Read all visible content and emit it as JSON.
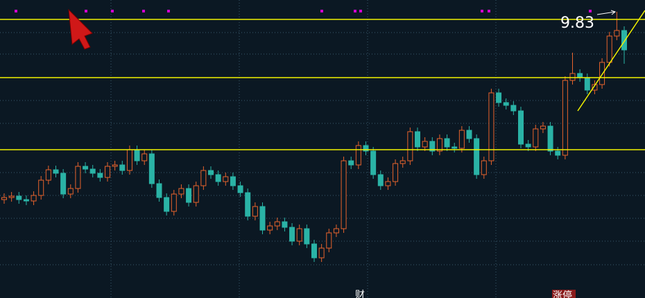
{
  "chart_data": {
    "type": "candlestick",
    "ylim": [
      5.7,
      10.0
    ],
    "up_color": "#e8632c",
    "down_color": "#2ab3a6",
    "line_color": "#f2f200",
    "hlines": [
      9.72,
      8.88,
      7.84
    ],
    "annotations": [
      {
        "text": "9.83"
      }
    ],
    "labels": [
      "财",
      "涨停"
    ],
    "open": [
      7.12,
      7.15,
      7.17,
      7.12,
      7.1,
      7.18,
      7.4,
      7.55,
      7.5,
      7.2,
      7.28,
      7.6,
      7.56,
      7.5,
      7.44,
      7.6,
      7.62,
      7.54,
      7.84,
      7.68,
      7.78,
      7.35,
      7.15,
      6.95,
      7.2,
      7.28,
      7.08,
      7.32,
      7.54,
      7.48,
      7.38,
      7.45,
      7.32,
      7.22,
      6.88,
      7.02,
      6.68,
      6.74,
      6.8,
      6.72,
      6.52,
      6.7,
      6.48,
      6.28,
      6.42,
      6.64,
      6.7,
      7.68,
      7.62,
      7.9,
      7.82,
      7.48,
      7.32,
      7.38,
      7.64,
      7.68,
      8.1,
      7.88,
      7.96,
      7.82,
      8.0,
      7.88,
      7.86,
      8.12,
      8.0,
      7.48,
      7.68,
      8.66,
      8.52,
      8.48,
      8.4,
      7.92,
      7.88,
      8.14,
      8.18,
      7.82,
      7.76,
      8.84,
      8.94,
      8.88,
      8.7,
      8.78,
      9.1,
      9.48,
      9.56
    ],
    "high": [
      7.21,
      7.23,
      7.23,
      7.18,
      7.24,
      7.46,
      7.61,
      7.61,
      7.56,
      7.34,
      7.66,
      7.66,
      7.62,
      7.56,
      7.66,
      7.68,
      7.68,
      7.9,
      7.9,
      7.84,
      7.84,
      7.41,
      7.21,
      7.26,
      7.34,
      7.34,
      7.38,
      7.6,
      7.6,
      7.54,
      7.51,
      7.51,
      7.38,
      7.28,
      7.08,
      7.08,
      6.8,
      6.86,
      6.86,
      6.78,
      6.76,
      6.76,
      6.54,
      6.48,
      6.7,
      6.76,
      7.74,
      7.74,
      7.96,
      7.96,
      7.88,
      7.54,
      7.44,
      7.7,
      7.74,
      8.16,
      8.16,
      8.02,
      8.02,
      8.06,
      8.06,
      7.94,
      8.18,
      8.18,
      8.06,
      7.74,
      8.72,
      8.72,
      8.58,
      8.54,
      8.46,
      7.98,
      8.2,
      8.24,
      8.24,
      7.88,
      8.9,
      9.24,
      9.0,
      8.94,
      8.84,
      9.16,
      9.54,
      9.83,
      9.62
    ],
    "low": [
      7.06,
      7.09,
      7.06,
      7.04,
      7.04,
      7.12,
      7.34,
      7.44,
      7.14,
      7.14,
      7.22,
      7.5,
      7.44,
      7.38,
      7.38,
      7.54,
      7.48,
      7.48,
      7.62,
      7.62,
      7.29,
      7.09,
      6.89,
      6.89,
      7.14,
      7.02,
      7.02,
      7.26,
      7.42,
      7.32,
      7.32,
      7.26,
      7.16,
      6.82,
      6.82,
      6.62,
      6.62,
      6.68,
      6.66,
      6.46,
      6.46,
      6.42,
      6.22,
      6.22,
      6.36,
      6.58,
      6.64,
      7.56,
      7.56,
      7.76,
      7.42,
      7.26,
      7.26,
      7.32,
      7.58,
      7.62,
      7.82,
      7.82,
      7.76,
      7.76,
      7.82,
      7.8,
      7.8,
      7.94,
      7.42,
      7.42,
      7.62,
      8.46,
      8.42,
      8.34,
      7.86,
      7.82,
      7.82,
      8.08,
      7.76,
      7.7,
      7.7,
      8.78,
      8.82,
      8.64,
      8.64,
      8.72,
      9.04,
      9.42,
      9.08
    ],
    "close": [
      7.15,
      7.17,
      7.12,
      7.1,
      7.18,
      7.4,
      7.55,
      7.5,
      7.2,
      7.28,
      7.6,
      7.56,
      7.5,
      7.44,
      7.6,
      7.62,
      7.54,
      7.84,
      7.68,
      7.78,
      7.35,
      7.15,
      6.95,
      7.2,
      7.28,
      7.08,
      7.32,
      7.54,
      7.48,
      7.38,
      7.45,
      7.32,
      7.22,
      6.88,
      7.02,
      6.68,
      6.74,
      6.8,
      6.72,
      6.52,
      6.7,
      6.48,
      6.28,
      6.42,
      6.64,
      6.7,
      7.68,
      7.62,
      7.9,
      7.82,
      7.48,
      7.32,
      7.38,
      7.64,
      7.68,
      8.1,
      7.88,
      7.96,
      7.82,
      8.0,
      7.88,
      7.86,
      8.12,
      8.0,
      7.48,
      7.68,
      8.66,
      8.52,
      8.48,
      8.4,
      7.92,
      7.88,
      8.14,
      8.18,
      7.82,
      7.76,
      8.84,
      8.94,
      8.88,
      8.7,
      8.78,
      9.1,
      9.48,
      9.56,
      9.28
    ]
  }
}
